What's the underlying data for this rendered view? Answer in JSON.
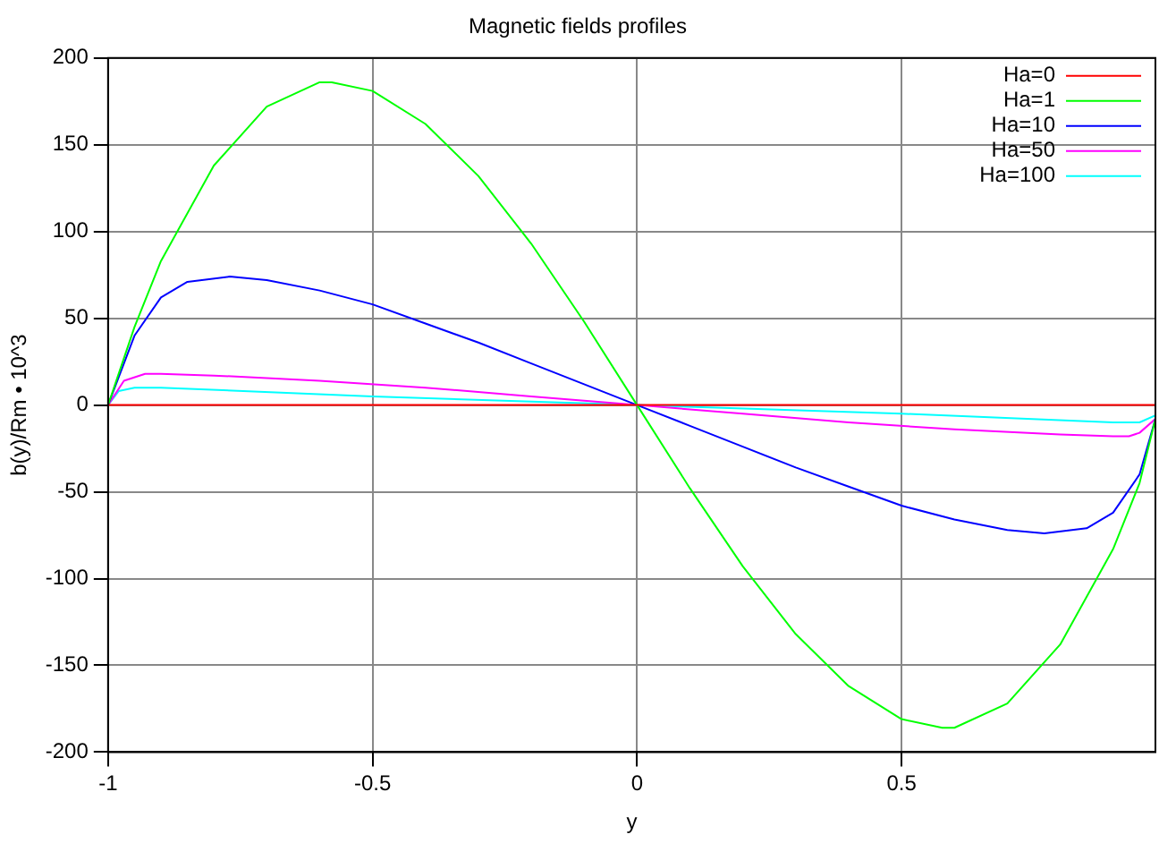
{
  "chart_data": {
    "type": "line",
    "title": "Magnetic fields profiles",
    "xlabel": "y",
    "ylabel": "b(y)/Rm • 10^3",
    "xlim": [
      -1,
      0.98
    ],
    "xticks": [
      -1,
      -0.5,
      0,
      0.5
    ],
    "ylim": [
      -200,
      200
    ],
    "yticks": [
      -200,
      -150,
      -100,
      -50,
      0,
      50,
      100,
      150,
      200
    ],
    "grid": true,
    "legend": "top right",
    "marker": "none",
    "line_style": "solid",
    "series": [
      {
        "name": "Ha=0",
        "color": "#ff0000",
        "x": [
          -1,
          0,
          0.98
        ],
        "values": [
          0,
          0,
          0
        ]
      },
      {
        "name": "Ha=1",
        "color": "#00ff00",
        "x": [
          -1,
          -0.95,
          -0.9,
          -0.8,
          -0.7,
          -0.6,
          -0.577,
          -0.5,
          -0.4,
          -0.3,
          -0.2,
          -0.1,
          0,
          0.1,
          0.2,
          0.3,
          0.4,
          0.5,
          0.577,
          0.6,
          0.7,
          0.8,
          0.9,
          0.95,
          0.98
        ],
        "values": [
          0,
          45,
          83,
          138,
          172,
          186,
          186,
          181,
          162,
          132,
          93,
          48,
          0,
          -48,
          -93,
          -132,
          -162,
          -181,
          -186,
          -186,
          -172,
          -138,
          -83,
          -45,
          -8
        ]
      },
      {
        "name": "Ha=10",
        "color": "#0000ff",
        "x": [
          -1,
          -0.95,
          -0.9,
          -0.85,
          -0.77,
          -0.7,
          -0.6,
          -0.5,
          -0.4,
          -0.3,
          -0.2,
          -0.1,
          0,
          0.1,
          0.2,
          0.3,
          0.4,
          0.5,
          0.6,
          0.7,
          0.77,
          0.85,
          0.9,
          0.95,
          0.98
        ],
        "values": [
          0,
          40,
          62,
          71,
          74,
          72,
          66,
          58,
          47,
          36,
          24,
          12,
          0,
          -12,
          -24,
          -36,
          -47,
          -58,
          -66,
          -72,
          -74,
          -71,
          -62,
          -40,
          -8
        ]
      },
      {
        "name": "Ha=50",
        "color": "#ff00ff",
        "x": [
          -1,
          -0.97,
          -0.93,
          -0.9,
          -0.8,
          -0.6,
          -0.4,
          -0.2,
          0,
          0.2,
          0.4,
          0.6,
          0.8,
          0.9,
          0.93,
          0.95,
          0.98
        ],
        "values": [
          0,
          14,
          18,
          18,
          17,
          14,
          10,
          5,
          0,
          -5,
          -10,
          -14,
          -17,
          -18,
          -18,
          -16,
          -8
        ]
      },
      {
        "name": "Ha=100",
        "color": "#00ffff",
        "x": [
          -1,
          -0.98,
          -0.95,
          -0.9,
          -0.5,
          0,
          0.5,
          0.9,
          0.95,
          0.98
        ],
        "values": [
          0,
          8,
          10,
          10,
          5,
          0,
          -5,
          -10,
          -10,
          -6
        ]
      }
    ]
  }
}
